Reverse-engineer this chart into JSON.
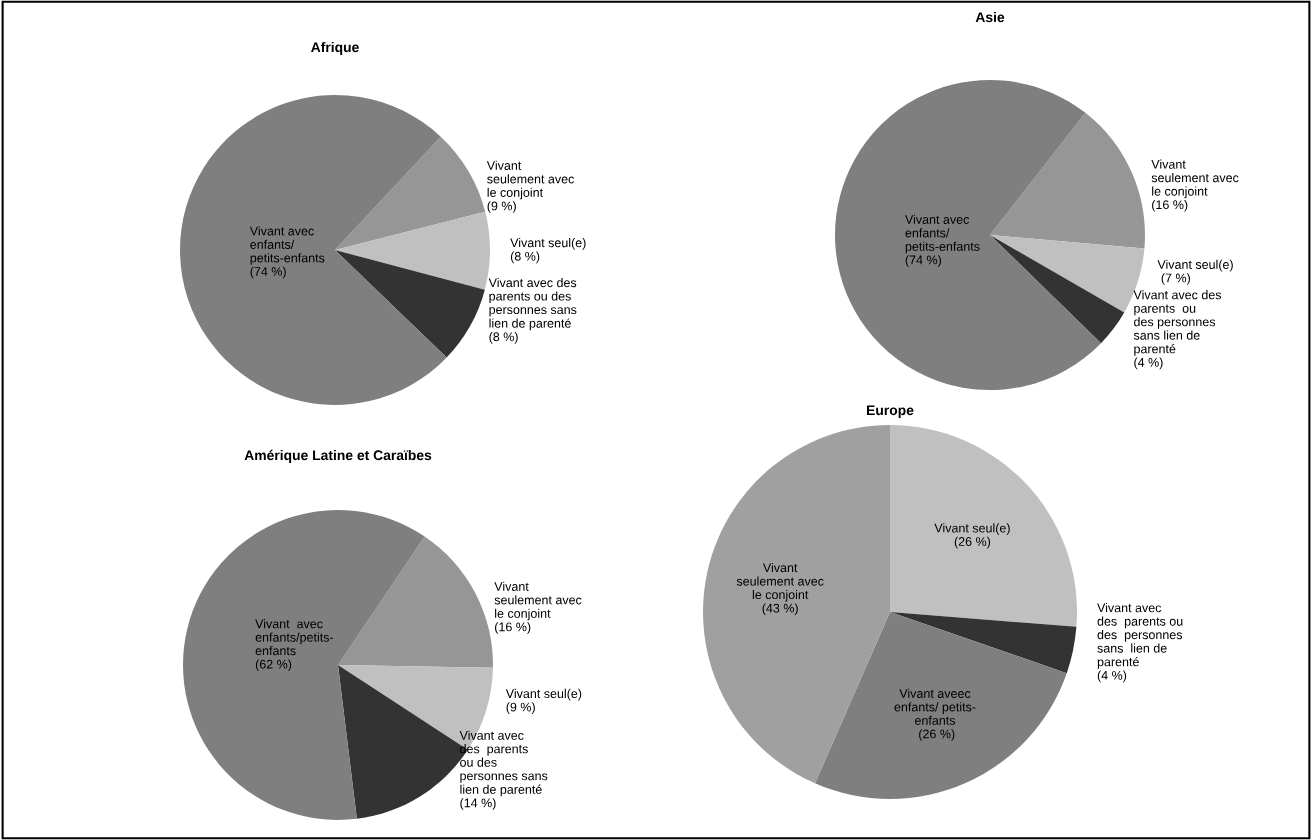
{
  "chart_data": [
    {
      "type": "pie",
      "title": "Afrique",
      "categories": [
        "Vivant\nseulement avec\nle conjoint",
        "Vivant seul(e)",
        "Vivant avec des\nparents ou des\npersonnes sans\nlien de parenté",
        "Vivant avec\nenfants/\npetits-enfants"
      ],
      "values": [
        9,
        8,
        8,
        74
      ],
      "value_labels": [
        "(9 %)",
        "(8 %)",
        "(8 %)",
        "(74 %)"
      ],
      "colors": [
        "#969696",
        "#c0c0c0",
        "#333333",
        "#7f7f7f"
      ]
    },
    {
      "type": "pie",
      "title": "Asie",
      "categories": [
        "Vivant\nseulement avec\nle conjoint",
        "Vivant seul(e)",
        "Vivant avec des\nparents  ou\ndes personnes\nsans lien de\nparenté",
        "Vivant avec\nenfants/\npetits-enfants"
      ],
      "values": [
        16,
        7,
        4,
        74
      ],
      "value_labels": [
        "(16 %)",
        " (7 %)",
        "(4 %)",
        "(74 %)"
      ],
      "colors": [
        "#969696",
        "#c0c0c0",
        "#333333",
        "#7f7f7f"
      ]
    },
    {
      "type": "pie",
      "title": "Amérique Latine et Caraïbes",
      "categories": [
        "Vivant\nseulement avec\nle conjoint",
        "Vivant seul(e)",
        "Vivant avec\ndes  parents\nou des\npersonnes sans\nlien de parenté",
        "Vivant  avec\nenfants/petits-\nenfants"
      ],
      "values": [
        16,
        9,
        14,
        62
      ],
      "value_labels": [
        "(16 %)",
        "(9 %)",
        "(14 %)",
        "(62 %)"
      ],
      "colors": [
        "#969696",
        "#c0c0c0",
        "#333333",
        "#7f7f7f"
      ]
    },
    {
      "type": "pie",
      "title": "Europe",
      "categories": [
        "Vivant seul(e)",
        "Vivant avec\ndes  parents ou\ndes  personnes\nsans  lien de\nparenté",
        "Vivant aveec\nenfants/ petits-\nenfants",
        "Vivant\nseulement avec\nle conjoint"
      ],
      "values": [
        26,
        4,
        26,
        43
      ],
      "value_labels": [
        "(26 %)",
        "(4 %)",
        " (26 %)",
        "(43 %)"
      ],
      "colors": [
        "#c0c0c0",
        "#333333",
        "#7f7f7f",
        "#a0a0a0"
      ]
    }
  ]
}
